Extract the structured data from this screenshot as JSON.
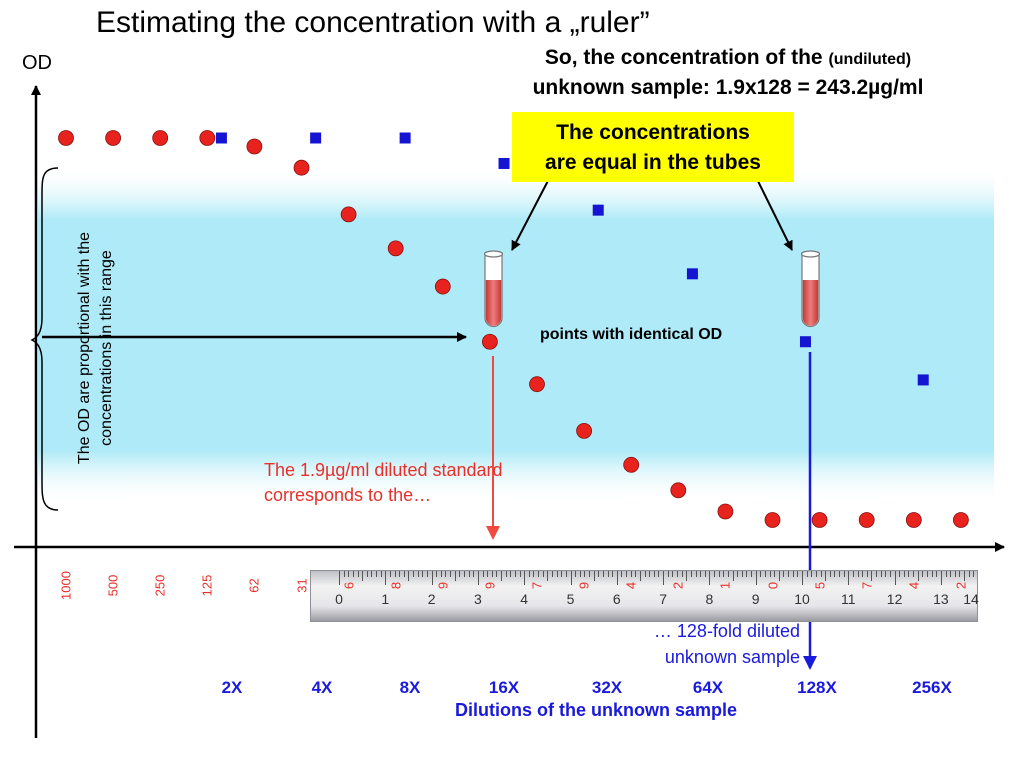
{
  "title": "Estimating the concentration with a „ruler”",
  "y_axis_label": "OD",
  "result": {
    "line1_main": "So, the concentration of the",
    "line1_small": "(undiluted)",
    "line2": "unknown sample: 1.9x128 = 243.2µg/ml"
  },
  "yellow_box": {
    "line1": "The concentrations",
    "line2": "are equal in the tubes"
  },
  "identical_label": "points with identical OD",
  "bracket_note": "The OD are proportional with the concentrations in this range",
  "red_note": "The 1.9µg/ml diluted standard corresponds to the…",
  "blue_note": {
    "line1": "… 128-fold diluted",
    "line2": "unknown sample"
  },
  "standard_ticks": [
    "1000",
    "500",
    "250",
    "125",
    "62",
    "31",
    "6",
    "8",
    "9",
    "9",
    "7",
    "9",
    "4",
    "2",
    "1",
    "0",
    "5",
    "7",
    "4",
    "2"
  ],
  "dilutions": [
    "2X",
    "4X",
    "8X",
    "16X",
    "32X",
    "64X",
    "128X",
    "256X"
  ],
  "dilutions_title": "Dilutions of the unknown sample",
  "ruler_numbers": [
    "0",
    "1",
    "2",
    "3",
    "4",
    "5",
    "6",
    "7",
    "8",
    "9",
    "10",
    "11",
    "12",
    "13",
    "14"
  ],
  "colors": {
    "standard": "#e8231e",
    "unknown": "#1414d2",
    "linear_band": "#aeeaf7",
    "highlight": "#ffff00",
    "red_arrow": "#f04a40",
    "blue_arrow": "#1a1adc"
  },
  "chart_data": {
    "type": "scatter",
    "series": [
      {
        "name": "standard",
        "x": [
          1,
          2,
          3,
          4,
          5,
          6,
          7,
          8,
          9,
          10,
          11,
          12,
          13,
          14,
          15,
          16,
          17,
          18,
          19,
          20
        ],
        "y": [
          0.93,
          0.93,
          0.93,
          0.93,
          0.91,
          0.86,
          0.75,
          0.67,
          0.58,
          0.45,
          0.35,
          0.24,
          0.16,
          0.1,
          0.05,
          0.03,
          0.03,
          0.03,
          0.03,
          0.03
        ]
      },
      {
        "name": "unknown",
        "x": [
          4.3,
          6.3,
          8.2,
          10.3,
          12.3,
          14.3,
          16.7,
          19.2
        ],
        "y": [
          0.93,
          0.93,
          0.93,
          0.87,
          0.76,
          0.61,
          0.45,
          0.36
        ]
      }
    ]
  }
}
